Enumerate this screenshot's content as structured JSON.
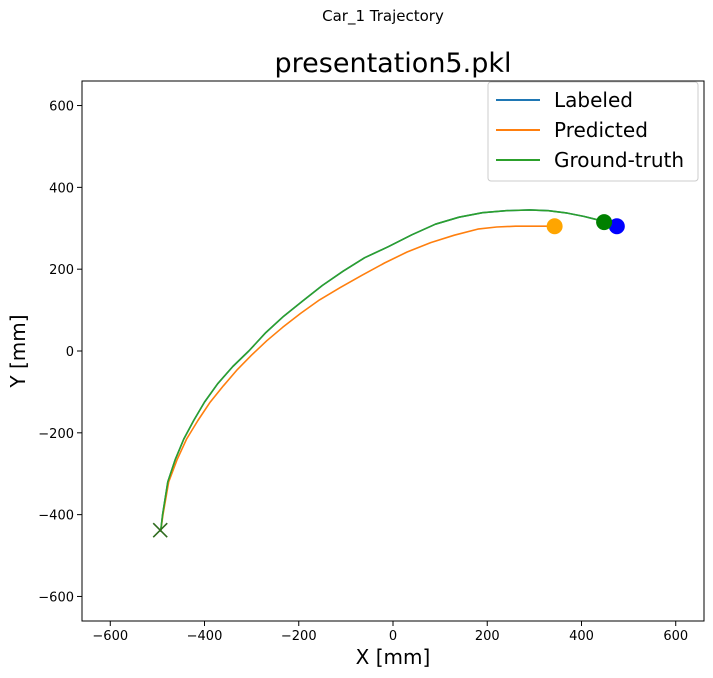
{
  "figure": {
    "suptitle": "Car_1 Trajectory"
  },
  "chart_data": {
    "type": "line",
    "title": "presentation5.pkl",
    "xlabel": "X [mm]",
    "ylabel": "Y [mm]",
    "xlim": [
      -660,
      660
    ],
    "ylim": [
      -660,
      660
    ],
    "xticks": [
      -600,
      -400,
      -200,
      0,
      200,
      400,
      600
    ],
    "yticks": [
      -600,
      -400,
      -200,
      0,
      200,
      400,
      600
    ],
    "xtick_labels": [
      "−600",
      "−400",
      "−200",
      "0",
      "200",
      "400",
      "600"
    ],
    "ytick_labels": [
      "−600",
      "−400",
      "−200",
      "0",
      "200",
      "400",
      "600"
    ],
    "grid": false,
    "legend_position": "upper-right",
    "series": [
      {
        "name": "Labeled",
        "color": "#1f77b4",
        "x": [
          -493,
          -489,
          -478,
          -462,
          -444,
          -423,
          -400,
          -372,
          -340,
          -306,
          -270,
          -232,
          -192,
          -150,
          -106,
          -60,
          -10,
          40,
          90,
          140,
          190,
          240,
          290,
          330,
          370,
          405,
          430,
          448
        ],
        "y": [
          -440,
          -400,
          -320,
          -265,
          -215,
          -170,
          -125,
          -80,
          -38,
          0,
          45,
          85,
          122,
          160,
          195,
          228,
          255,
          284,
          310,
          327,
          338,
          343,
          345,
          343,
          337,
          329,
          322,
          315
        ],
        "end_marker": {
          "x": 475,
          "y": 305,
          "color": "#0000ff"
        }
      },
      {
        "name": "Predicted",
        "color": "#ff7f0e",
        "x": [
          -493,
          -488,
          -476,
          -458,
          -438,
          -414,
          -388,
          -360,
          -330,
          -300,
          -268,
          -234,
          -196,
          -156,
          -112,
          -66,
          -18,
          30,
          80,
          130,
          180,
          220,
          260,
          300,
          340
        ],
        "y": [
          -440,
          -400,
          -320,
          -265,
          -215,
          -170,
          -125,
          -85,
          -45,
          -10,
          25,
          58,
          92,
          125,
          155,
          185,
          215,
          242,
          265,
          283,
          298,
          303,
          305,
          305,
          305
        ],
        "end_marker": {
          "x": 343,
          "y": 305,
          "color": "#ffa500"
        }
      },
      {
        "name": "Ground-truth",
        "color": "#2ca02c",
        "x": [
          -493,
          -489,
          -478,
          -462,
          -444,
          -423,
          -400,
          -372,
          -340,
          -306,
          -270,
          -232,
          -192,
          -150,
          -106,
          -60,
          -10,
          40,
          90,
          140,
          190,
          240,
          290,
          330,
          370,
          405,
          430,
          448
        ],
        "y": [
          -440,
          -400,
          -320,
          -265,
          -215,
          -170,
          -125,
          -80,
          -38,
          0,
          45,
          85,
          122,
          160,
          195,
          228,
          255,
          284,
          310,
          327,
          338,
          343,
          345,
          343,
          337,
          329,
          322,
          315
        ],
        "end_marker": {
          "x": 448,
          "y": 315,
          "color": "#008000"
        }
      }
    ],
    "start_marker": {
      "x": -494,
      "y": -438,
      "shape": "x"
    }
  }
}
